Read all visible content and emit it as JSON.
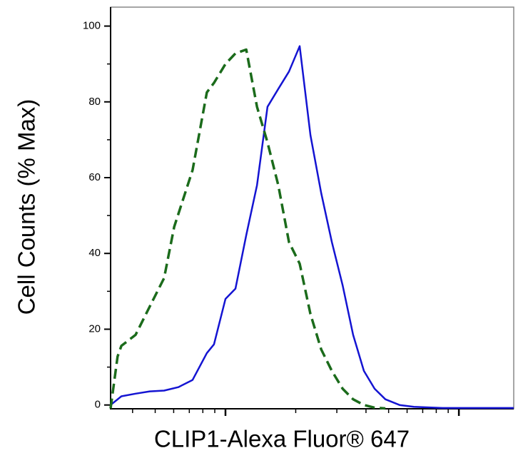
{
  "chart_data": {
    "type": "line",
    "xlabel": "CLIP1-Alexa Fluor® 647",
    "ylabel": "Cell Counts (% Max)",
    "xscale": "log",
    "xlim": [
      322,
      17180
    ],
    "xticks": [
      1000,
      10000
    ],
    "xminorticks": [
      400,
      500,
      600,
      700,
      800,
      900,
      2000,
      3000,
      4000,
      5000,
      6000,
      7000,
      8000,
      9000
    ],
    "ylim": [
      -1,
      105
    ],
    "yticks": [
      0,
      20,
      40,
      60,
      80,
      100
    ],
    "yminorticks": [
      10,
      30,
      50,
      70,
      90
    ],
    "series": [
      {
        "color": "#1414d2",
        "dash": false,
        "x": [
          322,
          358,
          412,
          474,
          546,
          628,
          723,
          832,
          893,
          1000,
          1104,
          1227,
          1365,
          1514,
          1683,
          1871,
          2080,
          2312,
          2570,
          2857,
          3177,
          3524,
          3918,
          4355,
          4842,
          5572,
          6412,
          8506,
          17180
        ],
        "values": [
          0,
          2.3,
          3,
          3.6,
          3.8,
          4.7,
          6.6,
          13.7,
          16,
          28,
          30.7,
          44.8,
          58,
          78.7,
          83.4,
          88,
          94.7,
          71.2,
          56,
          43,
          31.6,
          18.5,
          9,
          4.3,
          1.5,
          0,
          -0.5,
          -0.8,
          -0.8
        ]
      },
      {
        "color": "#1b6b1b",
        "dash": true,
        "x": [
          322,
          345,
          358,
          412,
          474,
          546,
          603,
          723,
          832,
          893,
          1000,
          1104,
          1227,
          1365,
          1514,
          1683,
          1871,
          2080,
          2312,
          2570,
          2857,
          3177,
          3524,
          3918,
          4355,
          4842
        ],
        "values": [
          -0.9,
          12.8,
          15.6,
          18.5,
          26,
          33.5,
          47,
          62,
          82.5,
          85,
          90,
          92.8,
          93.8,
          78.7,
          69.3,
          58,
          43,
          37.3,
          24,
          14.7,
          9,
          4.3,
          1.5,
          0,
          -0.7,
          -0.9
        ]
      }
    ]
  }
}
